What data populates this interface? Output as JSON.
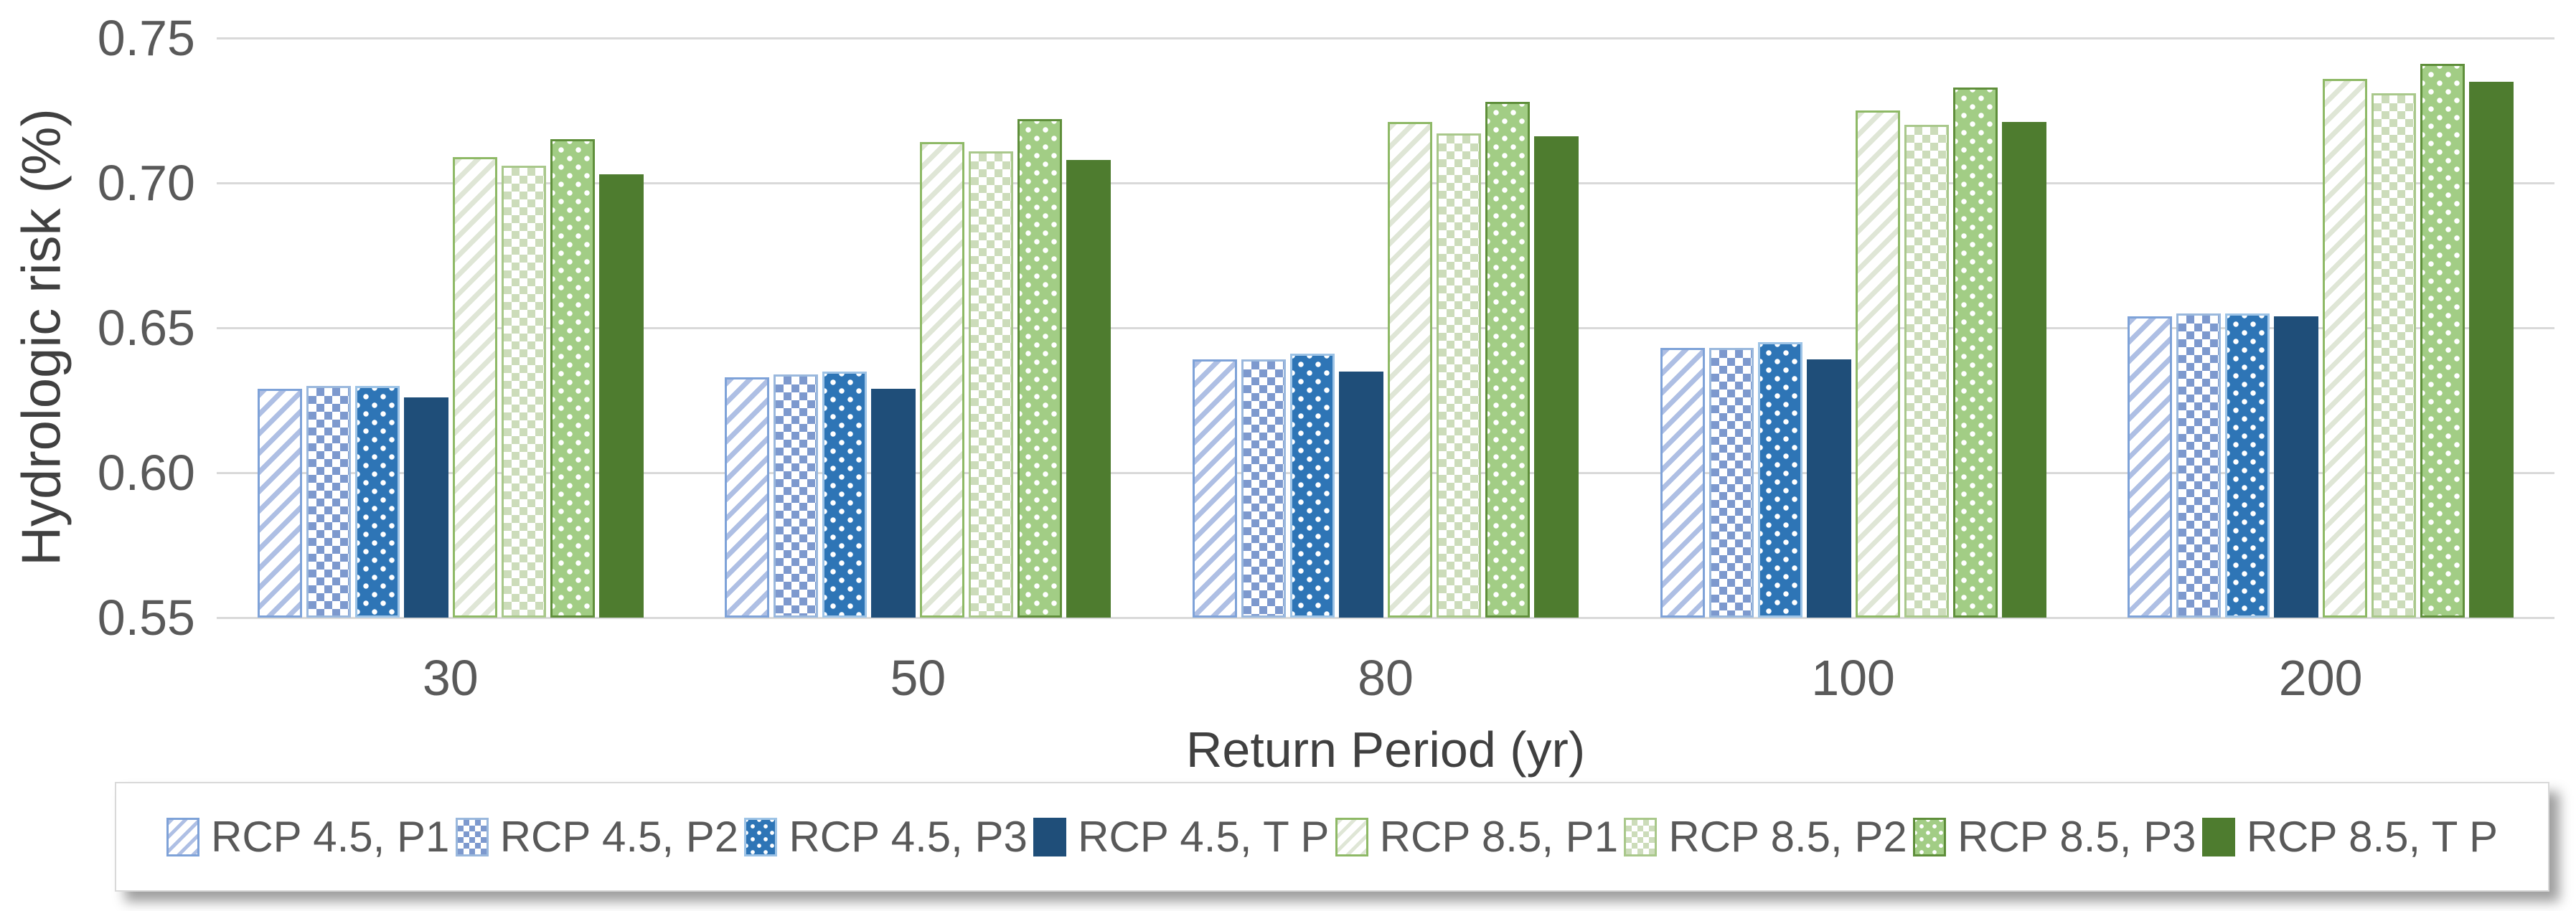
{
  "chart_data": {
    "type": "bar",
    "title": "",
    "xlabel": "Return Period (yr)",
    "ylabel": "Hydrologic risk (%)",
    "ylim": [
      0.55,
      0.75
    ],
    "ytick_step": 0.05,
    "ytick_labels": [
      "0.75",
      "0.70",
      "0.65",
      "0.60",
      "0.55"
    ],
    "categories": [
      "30",
      "50",
      "80",
      "100",
      "200"
    ],
    "grid": "horizontal-only",
    "legend_position": "bottom",
    "series": [
      {
        "name": "RCP 4.5, P1",
        "pattern": "diagonal",
        "color": "#aebfe4",
        "border": "#7ea2d8",
        "values": [
          0.629,
          0.633,
          0.639,
          0.643,
          0.654
        ]
      },
      {
        "name": "RCP 4.5, P2",
        "pattern": "checker",
        "color": "#7d99ce",
        "border": "#9ab8dd",
        "values": [
          0.63,
          0.634,
          0.639,
          0.643,
          0.655
        ]
      },
      {
        "name": "RCP 4.5, P3",
        "pattern": "dots",
        "color": "#2e75b6",
        "border": "#9dc3e6",
        "values": [
          0.63,
          0.635,
          0.641,
          0.645,
          0.655
        ]
      },
      {
        "name": "RCP 4.5, T P",
        "pattern": "solid",
        "color": "#1f4e79",
        "border": "#1f4e79",
        "values": [
          0.626,
          0.629,
          0.635,
          0.639,
          0.654
        ]
      },
      {
        "name": "RCP 8.5, P1",
        "pattern": "diagonal",
        "color": "#dfe6d6",
        "border": "#8eb966",
        "values": [
          0.709,
          0.714,
          0.721,
          0.725,
          0.736
        ]
      },
      {
        "name": "RCP 8.5, P2",
        "pattern": "checker",
        "color": "#ccdcba",
        "border": "#a9c88b",
        "values": [
          0.706,
          0.711,
          0.717,
          0.72,
          0.731
        ]
      },
      {
        "name": "RCP 8.5, P3",
        "pattern": "dots",
        "color": "#a2cd85",
        "border": "#5f8f3b",
        "values": [
          0.715,
          0.722,
          0.728,
          0.733,
          0.741
        ]
      },
      {
        "name": "RCP 8.5, T P",
        "pattern": "solid",
        "color": "#4e7c2f",
        "border": "#4e7c2f",
        "values": [
          0.703,
          0.708,
          0.716,
          0.721,
          0.735
        ]
      }
    ],
    "colors": {
      "gridline": "#d9d9d9",
      "tick_text": "#595959",
      "axis_title_text": "#404040",
      "legend_text": "#595959",
      "background": "#ffffff"
    }
  }
}
